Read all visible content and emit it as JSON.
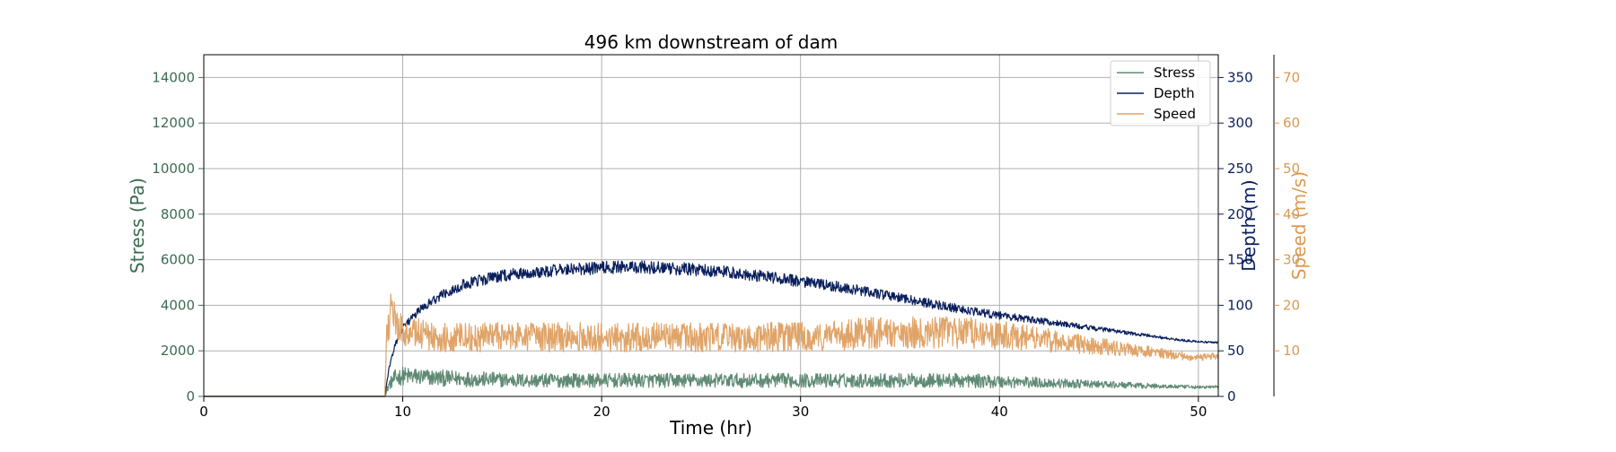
{
  "chart_data": {
    "type": "line",
    "title": "496 km downstream of dam",
    "xlabel": "Time (hr)",
    "xlim": [
      0,
      51
    ],
    "x_ticks": [
      0,
      10,
      20,
      30,
      40,
      50
    ],
    "grid": true,
    "legend_placement": "top-right",
    "axes": {
      "stress": {
        "label": "Stress (Pa)",
        "ylim": [
          0,
          15000
        ],
        "ticks": [
          0,
          2000,
          4000,
          6000,
          8000,
          10000,
          12000,
          14000
        ],
        "color": "#3d6b52",
        "side": "left"
      },
      "depth": {
        "label": "Depth (m)",
        "ylim": [
          0,
          375
        ],
        "ticks": [
          0,
          50,
          100,
          150,
          200,
          250,
          300,
          350
        ],
        "color": "#0a1f5c",
        "side": "right"
      },
      "speed": {
        "label": "Speed (m/s)",
        "ylim": [
          0,
          75
        ],
        "ticks": [
          10,
          20,
          30,
          40,
          50,
          60,
          70
        ],
        "color": "#d99a50",
        "side": "right-outer"
      }
    },
    "series": [
      {
        "name": "Stress",
        "axis": "stress",
        "color": "#5f8a74",
        "noise": 0.45,
        "x": [
          0,
          9.1,
          9.3,
          9.6,
          10,
          11,
          12,
          14,
          16,
          18,
          20,
          22,
          24,
          26,
          28,
          30,
          32,
          34,
          36,
          38,
          40,
          42,
          44,
          46,
          48,
          50,
          51
        ],
        "y": [
          0,
          0,
          500,
          800,
          900,
          850,
          800,
          750,
          700,
          700,
          700,
          700,
          700,
          700,
          700,
          700,
          700,
          700,
          700,
          700,
          650,
          600,
          550,
          500,
          450,
          400,
          420
        ]
      },
      {
        "name": "Depth",
        "axis": "depth",
        "color": "#0a1f5c",
        "noise": 0.05,
        "x": [
          0,
          9.1,
          9.3,
          9.6,
          10,
          11,
          12,
          13,
          14,
          15,
          16,
          17,
          18,
          19,
          20,
          21,
          22,
          23,
          24,
          25,
          26,
          27,
          28,
          29,
          30,
          31,
          32,
          33,
          34,
          35,
          36,
          37,
          38,
          39,
          40,
          41,
          42,
          43,
          44,
          45,
          46,
          47,
          48,
          49,
          50,
          51
        ],
        "y": [
          0,
          0,
          30,
          55,
          75,
          98,
          112,
          122,
          128,
          132,
          135,
          137,
          139,
          140,
          141,
          142,
          142,
          141,
          140,
          139,
          137,
          135,
          132,
          129,
          126,
          123,
          120,
          116,
          112,
          108,
          104,
          100,
          96,
          92,
          89,
          86,
          83,
          80,
          77,
          74,
          71,
          68,
          65,
          62,
          60,
          59
        ]
      },
      {
        "name": "Speed",
        "axis": "speed",
        "color": "#e0a468",
        "noise": 0.25,
        "x": [
          0,
          9.1,
          9.2,
          9.4,
          9.8,
          10.5,
          12,
          14,
          16,
          18,
          20,
          22,
          24,
          26,
          28,
          30,
          32,
          34,
          36,
          38,
          40,
          42,
          44,
          46,
          48,
          50,
          51
        ],
        "y": [
          0,
          0,
          15,
          18,
          15,
          14,
          13,
          13,
          13,
          13,
          13,
          13,
          13,
          13,
          13,
          13,
          13.5,
          14,
          14,
          14,
          13.5,
          12.5,
          11.5,
          10.5,
          9.5,
          8.5,
          9
        ]
      }
    ]
  }
}
